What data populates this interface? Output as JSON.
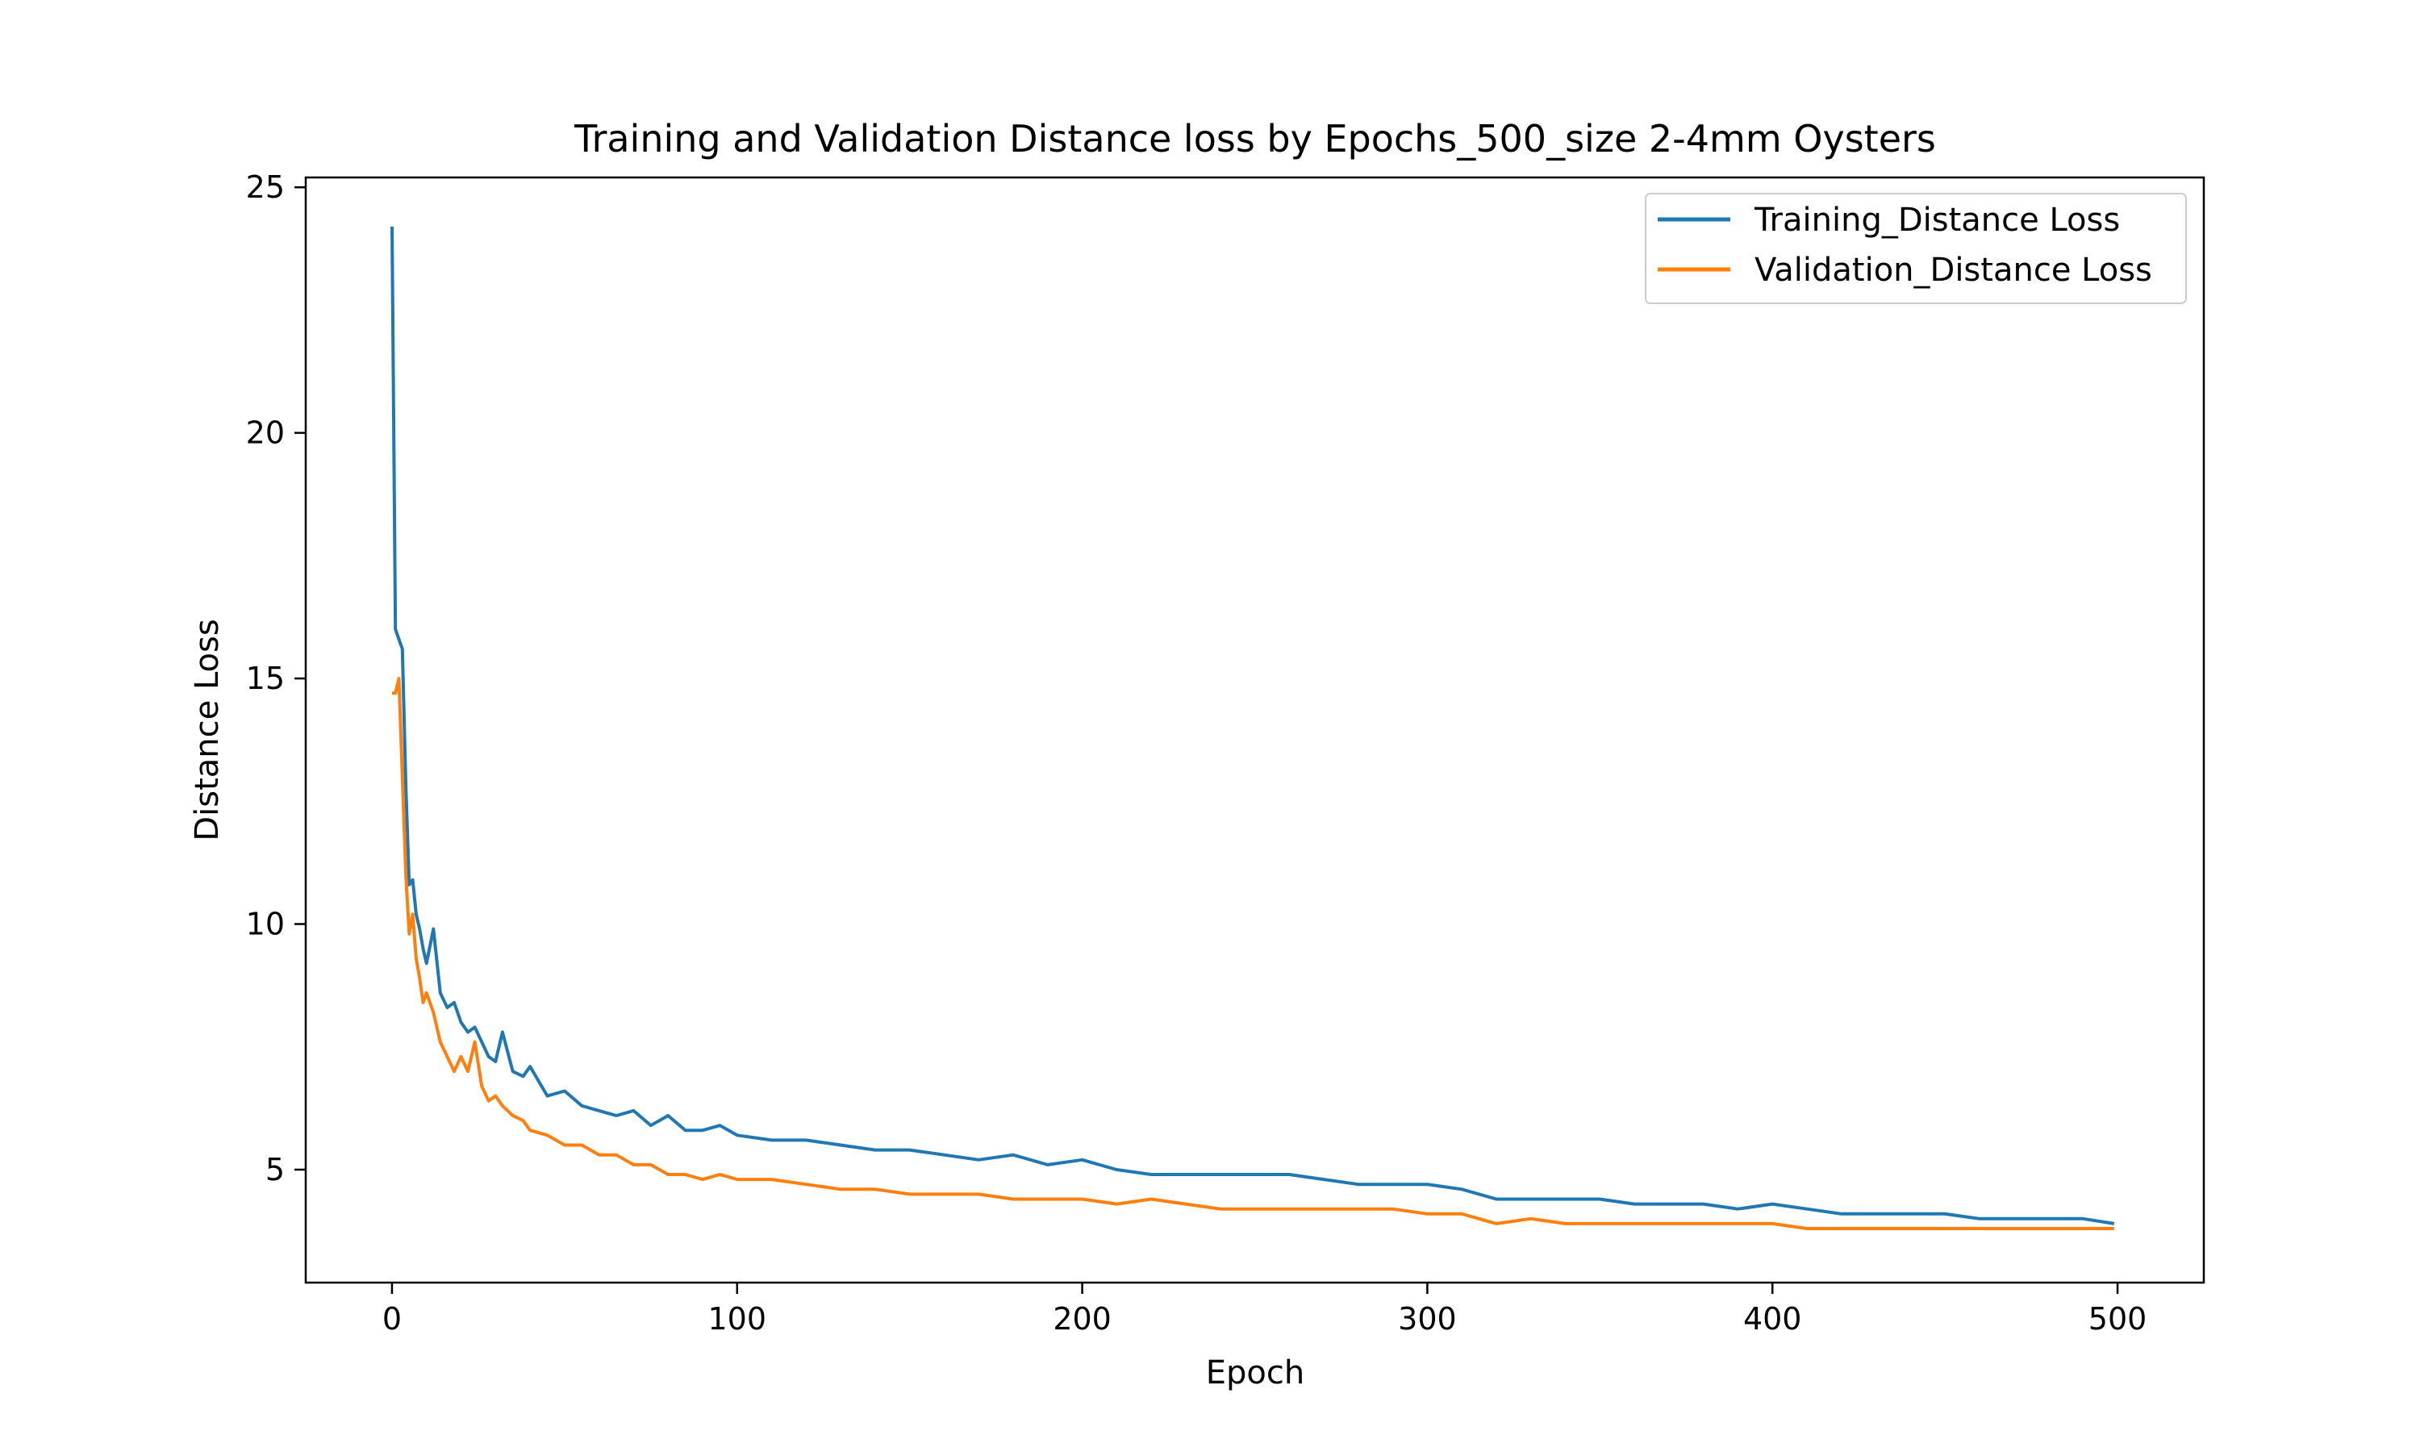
{
  "chart_data": {
    "type": "line",
    "title": "Training and Validation Distance loss by Epochs_500_size 2-4mm Oysters",
    "xlabel": "Epoch",
    "ylabel": "Distance Loss",
    "xlim": [
      -25,
      525
    ],
    "ylim": [
      2.7,
      25.2
    ],
    "xticks": [
      0,
      100,
      200,
      300,
      400,
      500
    ],
    "yticks": [
      5,
      10,
      15,
      20,
      25
    ],
    "grid": false,
    "legend_position": "top-right",
    "series": [
      {
        "name": "Training_Distance Loss",
        "color": "#1f77b4",
        "x": [
          0,
          1,
          2,
          3,
          4,
          5,
          6,
          7,
          8,
          9,
          10,
          12,
          14,
          16,
          18,
          20,
          22,
          24,
          26,
          28,
          30,
          32,
          35,
          38,
          40,
          45,
          50,
          55,
          60,
          65,
          70,
          75,
          80,
          85,
          90,
          95,
          100,
          110,
          120,
          130,
          140,
          150,
          160,
          170,
          180,
          190,
          200,
          210,
          220,
          230,
          240,
          250,
          260,
          270,
          280,
          290,
          300,
          310,
          320,
          330,
          340,
          350,
          360,
          370,
          380,
          390,
          400,
          410,
          420,
          430,
          440,
          450,
          460,
          470,
          480,
          490,
          499
        ],
        "y": [
          24.2,
          16.0,
          15.8,
          15.6,
          12.8,
          10.8,
          10.9,
          10.2,
          9.9,
          9.5,
          9.2,
          9.9,
          8.6,
          8.3,
          8.4,
          8.0,
          7.8,
          7.9,
          7.6,
          7.3,
          7.2,
          7.8,
          7.0,
          6.9,
          7.1,
          6.5,
          6.6,
          6.3,
          6.2,
          6.1,
          6.2,
          5.9,
          6.1,
          5.8,
          5.8,
          5.9,
          5.7,
          5.6,
          5.6,
          5.5,
          5.4,
          5.4,
          5.3,
          5.2,
          5.3,
          5.1,
          5.2,
          5.0,
          4.9,
          4.9,
          4.9,
          4.9,
          4.9,
          4.8,
          4.7,
          4.7,
          4.7,
          4.6,
          4.4,
          4.4,
          4.4,
          4.4,
          4.3,
          4.3,
          4.3,
          4.2,
          4.3,
          4.2,
          4.1,
          4.1,
          4.1,
          4.1,
          4.0,
          4.0,
          4.0,
          4.0,
          3.9
        ]
      },
      {
        "name": "Validation_Distance Loss",
        "color": "#ff7f0e",
        "x": [
          0,
          1,
          2,
          3,
          4,
          5,
          6,
          7,
          8,
          9,
          10,
          12,
          14,
          16,
          18,
          20,
          22,
          24,
          26,
          28,
          30,
          32,
          35,
          38,
          40,
          45,
          50,
          55,
          60,
          65,
          70,
          75,
          80,
          85,
          90,
          95,
          100,
          110,
          120,
          130,
          140,
          150,
          160,
          170,
          180,
          190,
          200,
          210,
          220,
          230,
          240,
          250,
          260,
          270,
          280,
          290,
          300,
          310,
          320,
          330,
          340,
          350,
          360,
          370,
          380,
          390,
          400,
          410,
          420,
          430,
          440,
          450,
          460,
          470,
          480,
          490,
          499
        ],
        "y": [
          14.7,
          14.7,
          15.0,
          13.0,
          11.0,
          9.8,
          10.2,
          9.3,
          8.9,
          8.4,
          8.6,
          8.2,
          7.6,
          7.3,
          7.0,
          7.3,
          7.0,
          7.6,
          6.7,
          6.4,
          6.5,
          6.3,
          6.1,
          6.0,
          5.8,
          5.7,
          5.5,
          5.5,
          5.3,
          5.3,
          5.1,
          5.1,
          4.9,
          4.9,
          4.8,
          4.9,
          4.8,
          4.8,
          4.7,
          4.6,
          4.6,
          4.5,
          4.5,
          4.5,
          4.4,
          4.4,
          4.4,
          4.3,
          4.4,
          4.3,
          4.2,
          4.2,
          4.2,
          4.2,
          4.2,
          4.2,
          4.1,
          4.1,
          3.9,
          4.0,
          3.9,
          3.9,
          3.9,
          3.9,
          3.9,
          3.9,
          3.9,
          3.8,
          3.8,
          3.8,
          3.8,
          3.8,
          3.8,
          3.8,
          3.8,
          3.8,
          3.8
        ]
      }
    ]
  }
}
